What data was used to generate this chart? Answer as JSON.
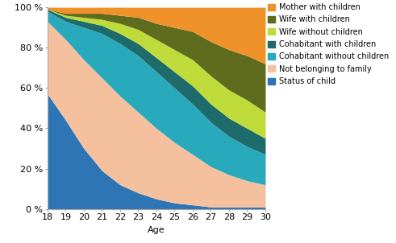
{
  "ages": [
    18,
    19,
    20,
    21,
    22,
    23,
    24,
    25,
    26,
    27,
    28,
    29,
    30
  ],
  "series": {
    "Status of child": [
      57,
      44,
      30,
      19,
      12,
      8,
      5,
      3,
      2,
      1,
      1,
      1,
      1
    ],
    "Not belonging to family": [
      36,
      40,
      44,
      46,
      44,
      40,
      35,
      30,
      25,
      20,
      16,
      13,
      11
    ],
    "Cohabitant without children": [
      5,
      9,
      16,
      22,
      26,
      28,
      28,
      27,
      25,
      22,
      19,
      17,
      15
    ],
    "Cohabitant with children": [
      1,
      2,
      3,
      4,
      5,
      6,
      7,
      8,
      9,
      9,
      9,
      9,
      8
    ],
    "Wife without children": [
      0,
      1,
      2,
      3,
      5,
      7,
      9,
      11,
      13,
      14,
      14,
      14,
      13
    ],
    "Wife with children": [
      0,
      1,
      2,
      3,
      4,
      6,
      8,
      11,
      14,
      17,
      20,
      22,
      24
    ],
    "Mother with children": [
      1,
      3,
      3,
      3,
      4,
      5,
      8,
      10,
      12,
      17,
      21,
      24,
      28
    ]
  },
  "colors": {
    "Status of child": "#2e75b6",
    "Not belonging to family": "#f4c09e",
    "Cohabitant without children": "#29aabc",
    "Cohabitant with children": "#1d6b6b",
    "Wife without children": "#bfdb3a",
    "Wife with children": "#5f6b1d",
    "Mother with children": "#f0922a"
  },
  "xlabel": "Age",
  "ytick_labels": [
    "0 %",
    "20 %",
    "40 %",
    "60 %",
    "80 %",
    "100 %"
  ],
  "ytick_values": [
    0,
    20,
    40,
    60,
    80,
    100
  ],
  "legend_order": [
    "Mother with children",
    "Wife with children",
    "Wife without children",
    "Cohabitant with children",
    "Cohabitant without children",
    "Not belonging to family",
    "Status of child"
  ],
  "background_color": "#ffffff",
  "axis_fontsize": 8,
  "legend_fontsize": 7
}
